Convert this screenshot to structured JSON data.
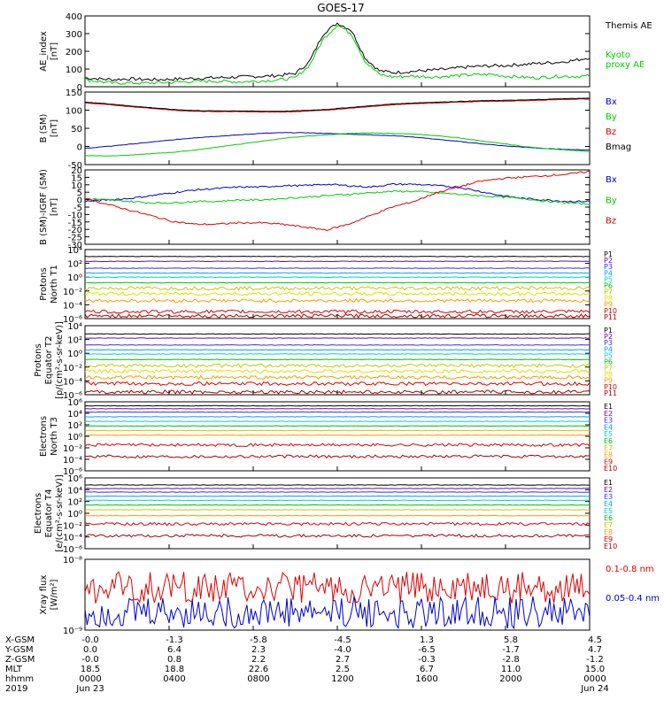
{
  "title": "GOES-17",
  "colors": {
    "black": "#000000",
    "green": "#00cc00",
    "blue": "#0000cc",
    "red": "#dd0000",
    "axis": "#000000"
  },
  "chart_data": [
    {
      "type": "line",
      "id": "ae",
      "ylabel": "AE_index\n[nT]",
      "ylim": [
        0,
        400
      ],
      "yticks": [
        "0",
        "100",
        "200",
        "300",
        "400"
      ],
      "series": [
        {
          "name": "Themis AE",
          "color": "#000000",
          "values": [
            50,
            45,
            40,
            45,
            42,
            40,
            42,
            45,
            48,
            50,
            52,
            55,
            58,
            60,
            65,
            75,
            140,
            300,
            360,
            320,
            160,
            90,
            80,
            85,
            90,
            95,
            100,
            110,
            115,
            118,
            120,
            125,
            130,
            135,
            140,
            150,
            165
          ]
        },
        {
          "name": "Kyoto\nproxy AE",
          "color": "#00cc00",
          "values": [
            40,
            30,
            20,
            22,
            20,
            22,
            25,
            28,
            30,
            32,
            30,
            28,
            30,
            35,
            40,
            50,
            120,
            270,
            350,
            300,
            140,
            70,
            55,
            60,
            58,
            55,
            60,
            65,
            68,
            70,
            60,
            55,
            50,
            55,
            60,
            58,
            60
          ]
        }
      ]
    },
    {
      "type": "line",
      "id": "bsm",
      "ylabel": "B (SM)\n[nT]",
      "ylim": [
        -60,
        140
      ],
      "yticks": [
        "-50",
        "0",
        "50",
        "100",
        "150"
      ],
      "series": [
        {
          "name": "Bx",
          "color": "#0000cc",
          "values": [
            -15,
            -10,
            -4,
            2,
            8,
            14,
            18,
            22,
            26,
            28,
            28,
            26,
            24,
            22,
            20,
            16,
            10,
            4,
            -2,
            -8,
            -12,
            -16,
            -18,
            -20
          ]
        },
        {
          "name": "By",
          "color": "#00cc00",
          "values": [
            -35,
            -36,
            -34,
            -30,
            -26,
            -20,
            -12,
            -4,
            4,
            12,
            18,
            22,
            26,
            27,
            26,
            24,
            20,
            14,
            6,
            -2,
            -10,
            -16,
            -20,
            -24
          ]
        },
        {
          "name": "Bz",
          "color": "#dd0000",
          "values": [
            110,
            106,
            100,
            95,
            90,
            87,
            86,
            86,
            85,
            85,
            87,
            90,
            95,
            100,
            105,
            108,
            110,
            112,
            114,
            115,
            116,
            118,
            120,
            121
          ]
        },
        {
          "name": "Bmag",
          "color": "#000000",
          "values": [
            112,
            108,
            102,
            97,
            92,
            89,
            88,
            88,
            87,
            87,
            89,
            92,
            97,
            102,
            107,
            110,
            112,
            114,
            116,
            117,
            118,
            120,
            122,
            123
          ]
        }
      ]
    },
    {
      "type": "line",
      "id": "bres",
      "ylabel": "B (SM)-IGRF (SM)\n[nT]",
      "ylim": [
        -32,
        20
      ],
      "yticks": [
        "-30",
        "-25",
        "-20",
        "-15",
        "-10",
        "-5",
        "0",
        "5",
        "10",
        "15",
        "20"
      ],
      "series": [
        {
          "name": "Bx",
          "color": "#0000cc",
          "values": [
            -2,
            -1,
            0,
            2,
            4,
            6,
            7,
            8,
            8,
            9,
            9,
            10,
            9,
            8,
            10,
            10,
            9,
            8,
            5,
            2,
            0,
            -1,
            -2,
            -2
          ]
        },
        {
          "name": "By",
          "color": "#00cc00",
          "values": [
            0,
            -1,
            -2,
            -3,
            -3,
            -2,
            -2,
            -1,
            -1,
            0,
            1,
            2,
            3,
            4,
            5,
            5,
            4,
            3,
            2,
            1,
            0,
            -2,
            -3,
            -4
          ]
        },
        {
          "name": "Bz",
          "color": "#dd0000",
          "values": [
            0,
            -4,
            -8,
            -12,
            -16,
            -18,
            -18,
            -17,
            -17,
            -18,
            -20,
            -22,
            -18,
            -12,
            -6,
            -2,
            4,
            8,
            12,
            14,
            15,
            16,
            17,
            19
          ]
        }
      ]
    },
    {
      "type": "line",
      "id": "pn",
      "ylabel": "Protons\nNorth T1",
      "yscale": "log",
      "ylim": [
        -6,
        4
      ],
      "yticks": [
        "10⁻⁶",
        "10⁻⁴",
        "10⁻²",
        "10⁰",
        "10²",
        "10⁴"
      ],
      "series": [
        {
          "name": "P1",
          "color": "#000000",
          "level": 3.0
        },
        {
          "name": "P2",
          "color": "#6a0dad",
          "level": 2.3
        },
        {
          "name": "P3",
          "color": "#3030ff",
          "level": 1.3
        },
        {
          "name": "P4",
          "color": "#00a0ff",
          "level": 0.6
        },
        {
          "name": "P5",
          "color": "#00d0d0",
          "level": 0.0
        },
        {
          "name": "P6",
          "color": "#00c000",
          "level": -0.8
        },
        {
          "name": "P7",
          "color": "#c8c800",
          "level": -1.6
        },
        {
          "name": "P8",
          "color": "#e0e000",
          "level": -2.4
        },
        {
          "name": "P9",
          "color": "#ff9900",
          "level": -3.4
        },
        {
          "name": "P10",
          "color": "#dd0000",
          "level": -5.0
        },
        {
          "name": "P11",
          "color": "#aa0000",
          "level": -5.6
        }
      ]
    },
    {
      "type": "line",
      "id": "pe",
      "ylabel": "Protons\nEquator T2\n[p/(cm²-s-sr-keV)]",
      "yscale": "log",
      "ylim": [
        -6,
        4
      ],
      "yticks": [
        "10⁻⁶",
        "10⁻⁴",
        "10⁻²",
        "10⁰",
        "10²",
        "10⁴"
      ],
      "series": [
        {
          "name": "P1",
          "color": "#000000",
          "level": 2.8
        },
        {
          "name": "P2",
          "color": "#6a0dad",
          "level": 2.2
        },
        {
          "name": "P3",
          "color": "#3030ff",
          "level": 1.2
        },
        {
          "name": "P4",
          "color": "#00a0ff",
          "level": 0.5
        },
        {
          "name": "P5",
          "color": "#00d0d0",
          "level": -0.1
        },
        {
          "name": "P6",
          "color": "#00c000",
          "level": -0.9
        },
        {
          "name": "P7",
          "color": "#c8c800",
          "level": -1.8
        },
        {
          "name": "P8",
          "color": "#e0e000",
          "level": -2.6
        },
        {
          "name": "P9",
          "color": "#ff9900",
          "level": -3.5
        },
        {
          "name": "P10",
          "color": "#dd0000",
          "level": -4.4
        },
        {
          "name": "P11",
          "color": "#aa0000",
          "level": -5.6
        }
      ]
    },
    {
      "type": "line",
      "id": "en",
      "ylabel": "Electrons\nNorth T3",
      "yscale": "log",
      "ylim": [
        -6,
        6
      ],
      "yticks": [
        "10⁻⁶",
        "10⁻⁴",
        "10⁻²",
        "10⁰",
        "10²",
        "10⁴",
        "10⁶"
      ],
      "series": [
        {
          "name": "E1",
          "color": "#000000",
          "level": 5.3
        },
        {
          "name": "E2",
          "color": "#6a0dad",
          "level": 4.8
        },
        {
          "name": "E3",
          "color": "#3030ff",
          "level": 4.2
        },
        {
          "name": "E4",
          "color": "#00a0ff",
          "level": 3.4
        },
        {
          "name": "E5",
          "color": "#00d0d0",
          "level": 2.6
        },
        {
          "name": "E6",
          "color": "#00c000",
          "level": 1.8
        },
        {
          "name": "E7",
          "color": "#c8c800",
          "level": 1.0
        },
        {
          "name": "E8",
          "color": "#ff9900",
          "level": 0.2
        },
        {
          "name": "E9",
          "color": "#dd0000",
          "level": -1.5
        },
        {
          "name": "E10",
          "color": "#aa0000",
          "level": -3.5
        }
      ]
    },
    {
      "type": "line",
      "id": "ee",
      "ylabel": "Electrons\nEquator T4\n[e/(cm²-s-sr-keV)]",
      "yscale": "log",
      "ylim": [
        -6,
        6
      ],
      "yticks": [
        "10⁻⁶",
        "10⁻⁴",
        "10⁻²",
        "10⁰",
        "10²",
        "10⁴",
        "10⁶"
      ],
      "series": [
        {
          "name": "E1",
          "color": "#000000",
          "level": 4.8
        },
        {
          "name": "E2",
          "color": "#6a0dad",
          "level": 4.2
        },
        {
          "name": "E3",
          "color": "#3030ff",
          "level": 3.6
        },
        {
          "name": "E4",
          "color": "#00a0ff",
          "level": 2.9
        },
        {
          "name": "E5",
          "color": "#00d0d0",
          "level": 2.2
        },
        {
          "name": "E6",
          "color": "#00c000",
          "level": 1.4
        },
        {
          "name": "E7",
          "color": "#c8c800",
          "level": 0.6
        },
        {
          "name": "E8",
          "color": "#ff9900",
          "level": -0.4
        },
        {
          "name": "E9",
          "color": "#dd0000",
          "level": -1.8
        },
        {
          "name": "E10",
          "color": "#aa0000",
          "level": -3.8
        }
      ]
    },
    {
      "type": "line",
      "id": "xray",
      "ylabel": "Xray flux\n[W/m²]",
      "yscale": "log",
      "ylim": [
        -9,
        -8
      ],
      "yticks": [
        "10⁻⁹",
        "10⁻⁸"
      ],
      "series": [
        {
          "name": "0.1-0.8 nm",
          "color": "#dd0000",
          "level": -8.4
        },
        {
          "name": "0.05-0.4 nm",
          "color": "#0000cc",
          "level": -8.75
        }
      ]
    }
  ],
  "x_axis": {
    "rows": [
      {
        "label": "X-GSM",
        "values": [
          "-0.0",
          "-1.3",
          "-5.8",
          "-4.5",
          "1.3",
          "5.8",
          "4.5"
        ]
      },
      {
        "label": "Y-GSM",
        "values": [
          "0.0",
          "6.4",
          "2.3",
          "-4.0",
          "-6.5",
          "-1.7",
          "4.7"
        ]
      },
      {
        "label": "Z-GSM",
        "values": [
          "-0.0",
          "0.8",
          "2.2",
          "2.7",
          "-0.3",
          "-2.8",
          "-1.2"
        ]
      },
      {
        "label": "MLT",
        "values": [
          "18.5",
          "18.8",
          "22.6",
          "2.5",
          "6.7",
          "11.0",
          "15.0"
        ]
      },
      {
        "label": "hhmm",
        "values": [
          "0000",
          "0400",
          "0800",
          "1200",
          "1600",
          "2000",
          "0000"
        ]
      },
      {
        "label": "2019",
        "values": [
          "Jun 23",
          "",
          "",
          "",
          "",
          "",
          "Jun 24"
        ]
      }
    ]
  }
}
